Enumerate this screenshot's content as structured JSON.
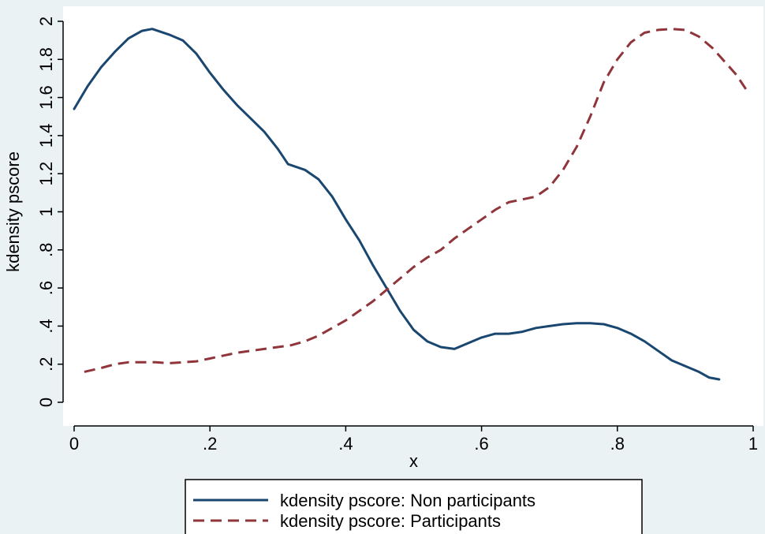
{
  "colors": {
    "outer_background": "#eaf2f3",
    "plot_background": "#ffffff",
    "non_participants": "#1a476f",
    "participants": "#90353b"
  },
  "chart_data": {
    "type": "line",
    "xlabel": "x",
    "ylabel": "kdensity pscore",
    "xlim": [
      0,
      1
    ],
    "ylim": [
      0,
      2
    ],
    "x_ticks": [
      "0",
      ".2",
      ".4",
      ".6",
      ".8",
      "1"
    ],
    "x_tick_values": [
      0,
      0.2,
      0.4,
      0.6,
      0.8,
      1
    ],
    "y_ticks": [
      "0",
      ".2",
      ".4",
      ".6",
      ".8",
      "1",
      "1.2",
      "1.4",
      "1.6",
      "1.8",
      "2"
    ],
    "y_tick_values": [
      0,
      0.2,
      0.4,
      0.6,
      0.8,
      1,
      1.2,
      1.4,
      1.6,
      1.8,
      2
    ],
    "grid": false,
    "legend_position": "bottom",
    "series": [
      {
        "name": "kdensity pscore: Non participants",
        "style": "solid",
        "points": [
          [
            0.0,
            1.54
          ],
          [
            0.02,
            1.66
          ],
          [
            0.04,
            1.76
          ],
          [
            0.06,
            1.84
          ],
          [
            0.08,
            1.91
          ],
          [
            0.1,
            1.95
          ],
          [
            0.115,
            1.96
          ],
          [
            0.14,
            1.93
          ],
          [
            0.16,
            1.9
          ],
          [
            0.18,
            1.83
          ],
          [
            0.2,
            1.73
          ],
          [
            0.22,
            1.64
          ],
          [
            0.24,
            1.56
          ],
          [
            0.26,
            1.49
          ],
          [
            0.28,
            1.42
          ],
          [
            0.3,
            1.33
          ],
          [
            0.315,
            1.25
          ],
          [
            0.34,
            1.22
          ],
          [
            0.36,
            1.17
          ],
          [
            0.38,
            1.08
          ],
          [
            0.4,
            0.96
          ],
          [
            0.42,
            0.85
          ],
          [
            0.44,
            0.72
          ],
          [
            0.46,
            0.6
          ],
          [
            0.48,
            0.48
          ],
          [
            0.5,
            0.38
          ],
          [
            0.52,
            0.32
          ],
          [
            0.54,
            0.29
          ],
          [
            0.56,
            0.28
          ],
          [
            0.58,
            0.31
          ],
          [
            0.6,
            0.34
          ],
          [
            0.62,
            0.36
          ],
          [
            0.64,
            0.36
          ],
          [
            0.66,
            0.37
          ],
          [
            0.68,
            0.39
          ],
          [
            0.7,
            0.4
          ],
          [
            0.72,
            0.41
          ],
          [
            0.74,
            0.415
          ],
          [
            0.76,
            0.415
          ],
          [
            0.78,
            0.41
          ],
          [
            0.8,
            0.39
          ],
          [
            0.82,
            0.36
          ],
          [
            0.84,
            0.32
          ],
          [
            0.86,
            0.27
          ],
          [
            0.88,
            0.22
          ],
          [
            0.9,
            0.19
          ],
          [
            0.92,
            0.16
          ],
          [
            0.935,
            0.13
          ],
          [
            0.95,
            0.12
          ]
        ]
      },
      {
        "name": "kdensity pscore: Participants",
        "style": "dashed",
        "points": [
          [
            0.015,
            0.16
          ],
          [
            0.04,
            0.18
          ],
          [
            0.06,
            0.2
          ],
          [
            0.08,
            0.21
          ],
          [
            0.1,
            0.21
          ],
          [
            0.12,
            0.21
          ],
          [
            0.14,
            0.205
          ],
          [
            0.16,
            0.21
          ],
          [
            0.18,
            0.215
          ],
          [
            0.2,
            0.23
          ],
          [
            0.22,
            0.245
          ],
          [
            0.24,
            0.26
          ],
          [
            0.26,
            0.27
          ],
          [
            0.28,
            0.28
          ],
          [
            0.3,
            0.29
          ],
          [
            0.32,
            0.3
          ],
          [
            0.34,
            0.32
          ],
          [
            0.36,
            0.35
          ],
          [
            0.38,
            0.39
          ],
          [
            0.4,
            0.43
          ],
          [
            0.42,
            0.48
          ],
          [
            0.44,
            0.53
          ],
          [
            0.46,
            0.59
          ],
          [
            0.48,
            0.65
          ],
          [
            0.5,
            0.71
          ],
          [
            0.52,
            0.76
          ],
          [
            0.54,
            0.8
          ],
          [
            0.56,
            0.86
          ],
          [
            0.58,
            0.91
          ],
          [
            0.6,
            0.96
          ],
          [
            0.62,
            1.01
          ],
          [
            0.64,
            1.05
          ],
          [
            0.66,
            1.065
          ],
          [
            0.68,
            1.08
          ],
          [
            0.7,
            1.13
          ],
          [
            0.72,
            1.22
          ],
          [
            0.74,
            1.34
          ],
          [
            0.76,
            1.5
          ],
          [
            0.78,
            1.68
          ],
          [
            0.8,
            1.8
          ],
          [
            0.82,
            1.89
          ],
          [
            0.84,
            1.94
          ],
          [
            0.86,
            1.955
          ],
          [
            0.88,
            1.96
          ],
          [
            0.9,
            1.955
          ],
          [
            0.92,
            1.92
          ],
          [
            0.94,
            1.86
          ],
          [
            0.96,
            1.78
          ],
          [
            0.975,
            1.72
          ],
          [
            0.99,
            1.64
          ]
        ]
      }
    ]
  }
}
